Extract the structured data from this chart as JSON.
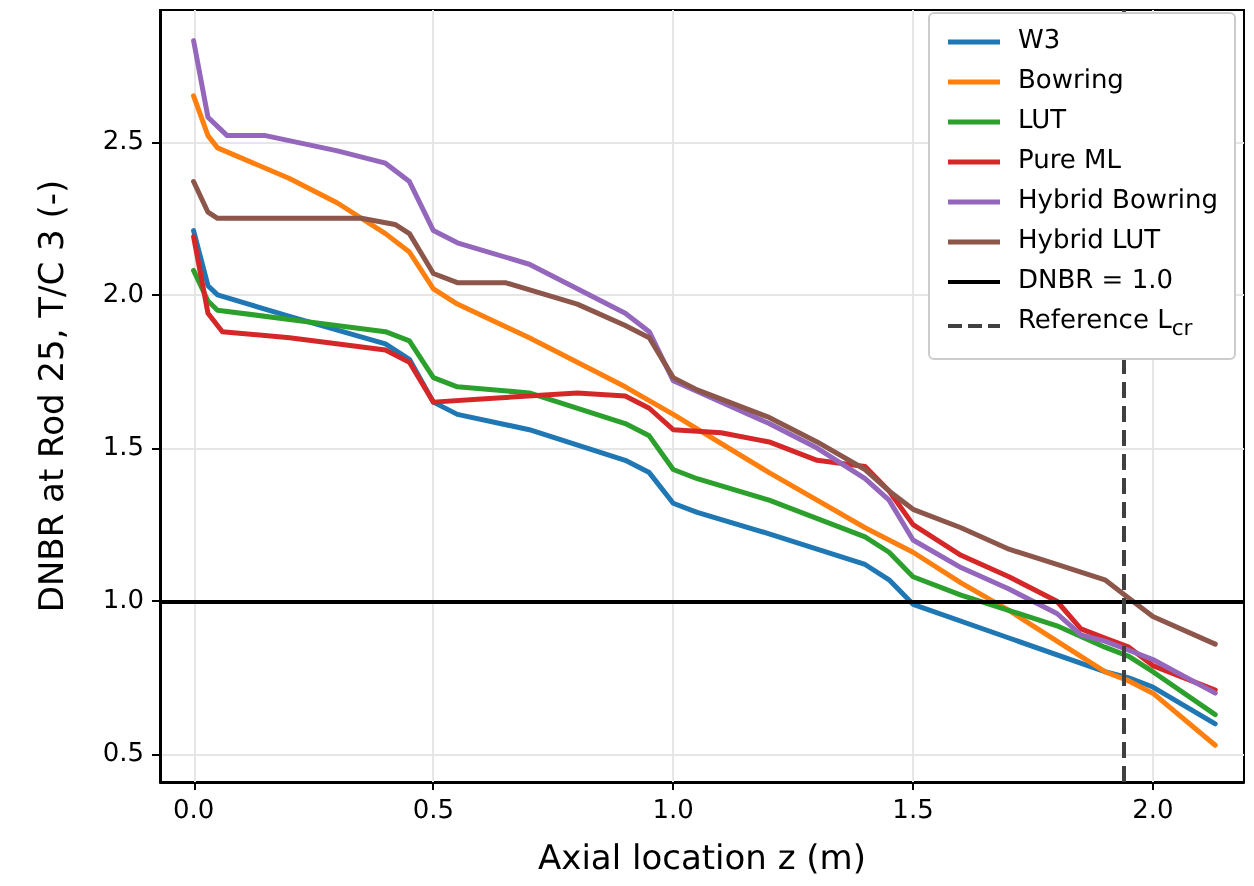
{
  "chart_data": {
    "type": "line",
    "xlabel": "Axial location z (m)",
    "ylabel": "DNBR at Rod 25, T/C 3 (-)",
    "xlim": [
      -0.07,
      2.19
    ],
    "ylim": [
      0.41,
      2.93
    ],
    "xticks": [
      {
        "value": 0,
        "label": "0.0"
      },
      {
        "value": 0.5,
        "label": "0.5"
      },
      {
        "value": 1,
        "label": "1.0"
      },
      {
        "value": 1.5,
        "label": "1.5"
      },
      {
        "value": 2,
        "label": "2.0"
      }
    ],
    "yticks": [
      {
        "value": 0.5,
        "label": "0.5"
      },
      {
        "value": 1,
        "label": "1.0"
      },
      {
        "value": 1.5,
        "label": "1.5"
      },
      {
        "value": 2,
        "label": "2.0"
      },
      {
        "value": 2.5,
        "label": "2.5"
      }
    ],
    "grid": true,
    "legend": "top right",
    "marker": "none",
    "line_style": "solid",
    "series": [
      {
        "name": "W3",
        "color": "#1f77b4",
        "x": [
          0,
          0.03,
          0.05,
          0.2,
          0.4,
          0.45,
          0.5,
          0.55,
          0.7,
          0.9,
          0.95,
          1.0,
          1.05,
          1.2,
          1.4,
          1.45,
          1.5,
          1.7,
          1.9,
          1.95,
          2.0,
          2.13
        ],
        "values": [
          2.21,
          2.03,
          2.0,
          1.93,
          1.84,
          1.79,
          1.65,
          1.61,
          1.56,
          1.46,
          1.42,
          1.32,
          1.29,
          1.22,
          1.12,
          1.07,
          0.99,
          0.88,
          0.77,
          0.75,
          0.72,
          0.6
        ]
      },
      {
        "name": "Bowring",
        "color": "#ff7f0e",
        "x": [
          0,
          0.03,
          0.05,
          0.2,
          0.3,
          0.4,
          0.45,
          0.5,
          0.55,
          0.7,
          0.9,
          1.0,
          1.2,
          1.4,
          1.5,
          1.6,
          1.7,
          1.8,
          1.9,
          1.95,
          2.0,
          2.13
        ],
        "values": [
          2.65,
          2.52,
          2.48,
          2.38,
          2.3,
          2.2,
          2.14,
          2.02,
          1.97,
          1.86,
          1.7,
          1.61,
          1.42,
          1.24,
          1.16,
          1.06,
          0.97,
          0.87,
          0.77,
          0.74,
          0.7,
          0.53
        ]
      },
      {
        "name": "LUT",
        "color": "#2ca02c",
        "x": [
          0,
          0.03,
          0.05,
          0.2,
          0.4,
          0.45,
          0.5,
          0.55,
          0.7,
          0.9,
          0.95,
          1.0,
          1.05,
          1.2,
          1.4,
          1.45,
          1.5,
          1.6,
          1.8,
          1.9,
          1.95,
          2.0,
          2.13
        ],
        "values": [
          2.08,
          1.98,
          1.95,
          1.92,
          1.88,
          1.85,
          1.73,
          1.7,
          1.68,
          1.58,
          1.54,
          1.43,
          1.4,
          1.33,
          1.21,
          1.16,
          1.08,
          1.02,
          0.92,
          0.85,
          0.82,
          0.77,
          0.63
        ]
      },
      {
        "name": "Pure ML",
        "color": "#d62728",
        "x": [
          0,
          0.03,
          0.06,
          0.2,
          0.4,
          0.45,
          0.5,
          0.6,
          0.8,
          0.9,
          0.95,
          1.0,
          1.1,
          1.2,
          1.3,
          1.4,
          1.45,
          1.5,
          1.6,
          1.7,
          1.8,
          1.85,
          1.9,
          1.95,
          2.0,
          2.13
        ],
        "values": [
          2.19,
          1.94,
          1.88,
          1.86,
          1.82,
          1.78,
          1.65,
          1.66,
          1.68,
          1.67,
          1.63,
          1.56,
          1.55,
          1.52,
          1.46,
          1.44,
          1.36,
          1.25,
          1.15,
          1.08,
          1.0,
          0.91,
          0.88,
          0.85,
          0.79,
          0.71
        ]
      },
      {
        "name": "Hybrid Bowring",
        "color": "#9467bd",
        "x": [
          0,
          0.03,
          0.07,
          0.15,
          0.3,
          0.4,
          0.45,
          0.5,
          0.55,
          0.7,
          0.9,
          0.95,
          1.0,
          1.2,
          1.3,
          1.4,
          1.45,
          1.5,
          1.6,
          1.7,
          1.8,
          1.85,
          1.9,
          1.95,
          2.0,
          2.13
        ],
        "values": [
          2.83,
          2.58,
          2.52,
          2.52,
          2.47,
          2.43,
          2.37,
          2.21,
          2.17,
          2.1,
          1.94,
          1.88,
          1.72,
          1.58,
          1.5,
          1.4,
          1.33,
          1.2,
          1.11,
          1.04,
          0.96,
          0.89,
          0.87,
          0.84,
          0.81,
          0.7
        ]
      },
      {
        "name": "Hybrid LUT",
        "color": "#8c564b",
        "x": [
          0,
          0.03,
          0.05,
          0.2,
          0.35,
          0.42,
          0.45,
          0.5,
          0.55,
          0.65,
          0.8,
          0.9,
          0.95,
          1.0,
          1.05,
          1.2,
          1.3,
          1.4,
          1.45,
          1.5,
          1.6,
          1.7,
          1.8,
          1.9,
          1.95,
          2.0,
          2.13
        ],
        "values": [
          2.37,
          2.27,
          2.25,
          2.25,
          2.25,
          2.23,
          2.2,
          2.07,
          2.04,
          2.04,
          1.97,
          1.9,
          1.86,
          1.73,
          1.69,
          1.6,
          1.52,
          1.43,
          1.36,
          1.3,
          1.24,
          1.17,
          1.12,
          1.07,
          1.01,
          0.95,
          0.86
        ]
      }
    ],
    "ref_lines": [
      {
        "axis": "y",
        "value": 1.0,
        "label": "DNBR = 1.0",
        "color": "#000000",
        "line_style": "solid"
      },
      {
        "axis": "x",
        "value": 1.94,
        "label": "Reference L$_{cr}$",
        "color": "#404040",
        "line_style": "dashed"
      }
    ]
  }
}
